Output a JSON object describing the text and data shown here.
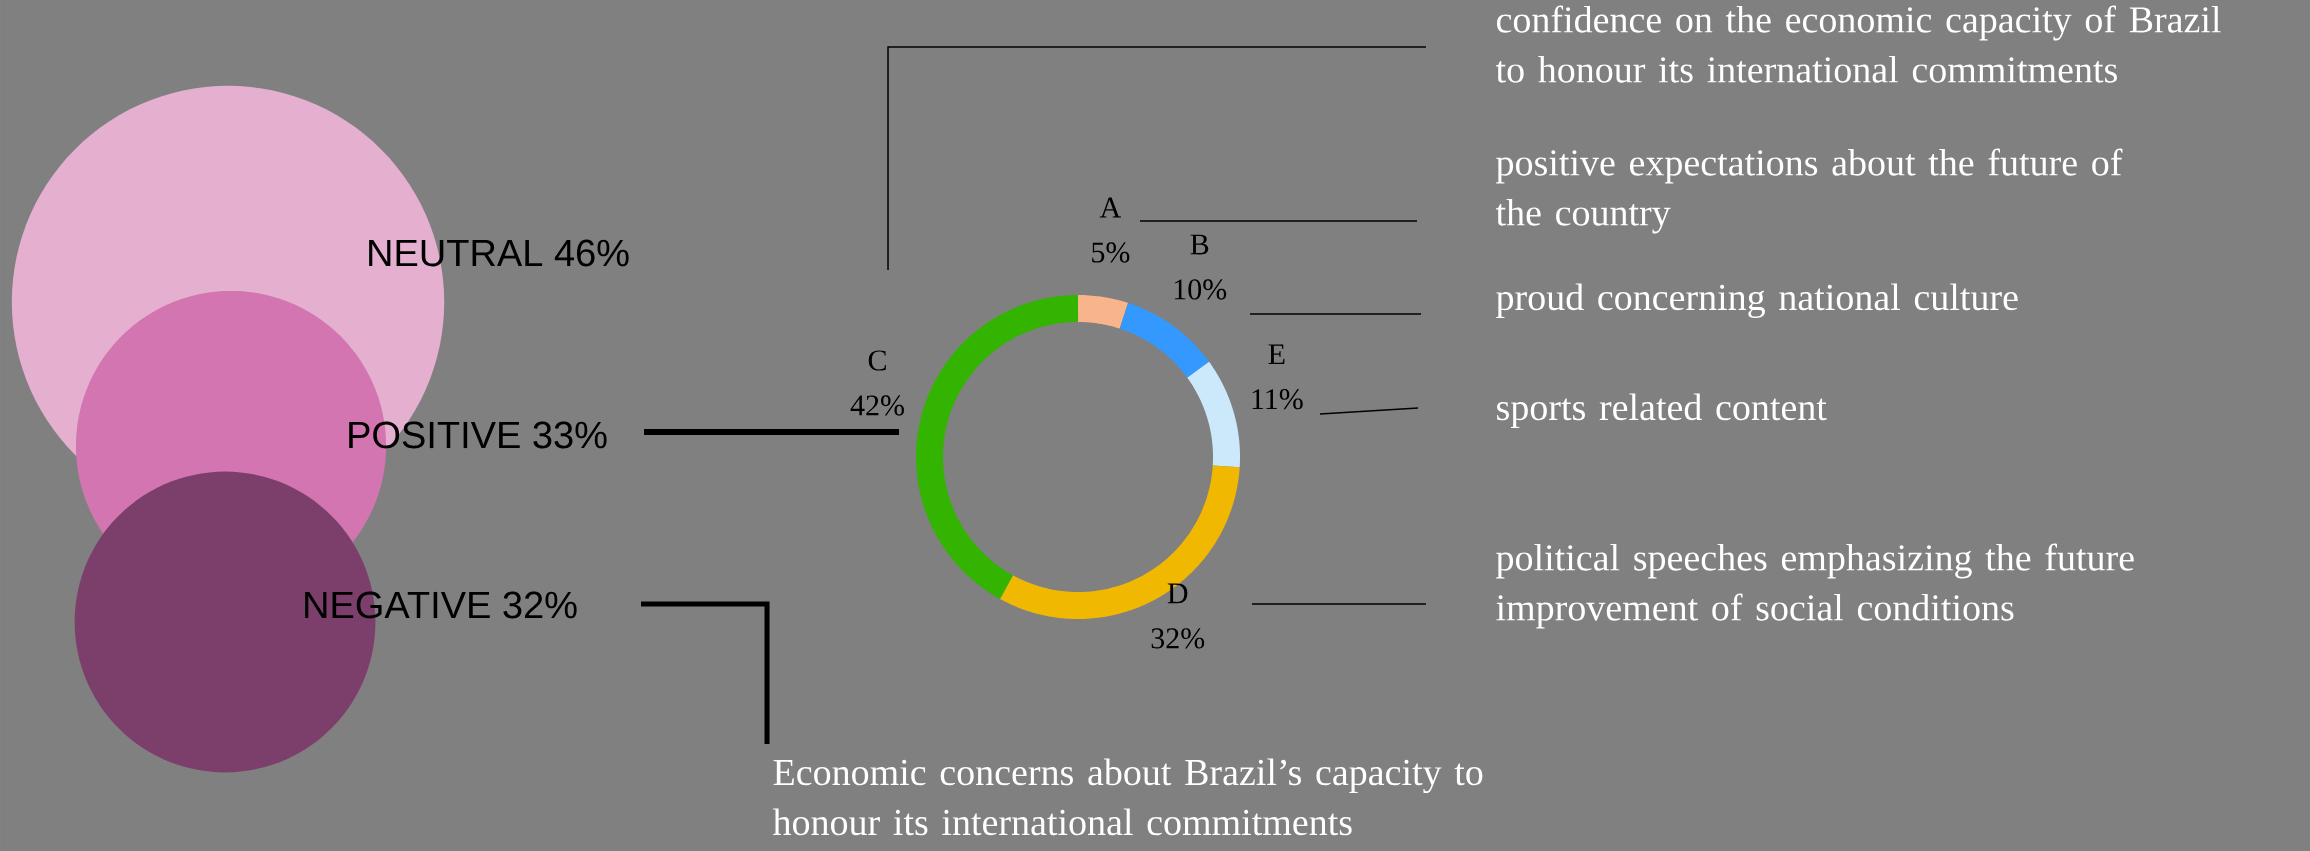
{
  "chart_data": [
    {
      "type": "other",
      "categories": [
        "NEUTRAL",
        "POSITIVE",
        "NEGATIVE"
      ],
      "values": [
        46,
        33,
        32
      ],
      "value_labels": [
        "46%",
        "33%",
        "32%"
      ],
      "colors": [
        "#e5afd0",
        "#d275b0",
        "#7c3f6b"
      ],
      "annotations": [
        "Economic concerns about Brazil’s capacity to honour its international commitments"
      ]
    },
    {
      "type": "donut",
      "categories": [
        "A",
        "B",
        "E",
        "D",
        "C"
      ],
      "values": [
        5,
        10,
        11,
        32,
        42
      ],
      "value_labels": [
        "5%",
        "10%",
        "11%",
        "32%",
        "42%"
      ],
      "colors": [
        "#f8b48a",
        "#3399ff",
        "#cce9fb",
        "#f0b800",
        "#33b400"
      ],
      "annotations": [
        "positive expectations about the future of the country",
        "proud concerning national culture",
        "sports related content",
        "political speeches emphasizing the future improvement of social conditions",
        "confidence on the economic capacity of Brazil to honour its international commitments"
      ]
    }
  ]
}
